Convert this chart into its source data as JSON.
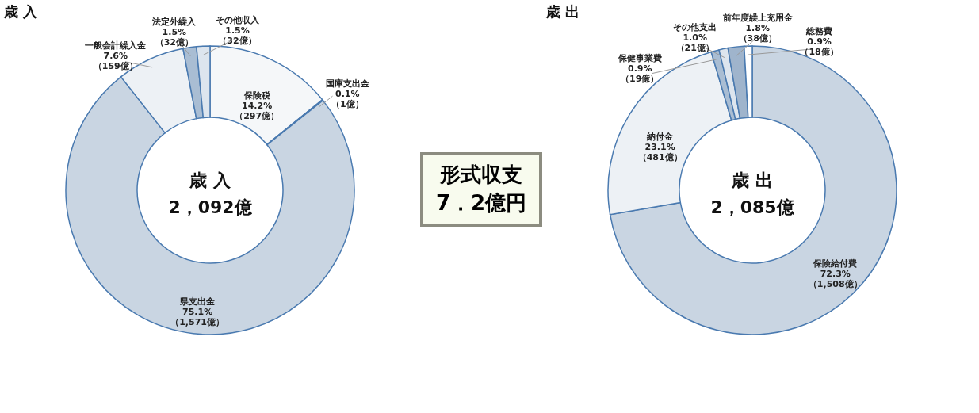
{
  "chart_data": [
    {
      "type": "donut",
      "title": "歳 入",
      "categories": [
        "保険税",
        "国庫支出金",
        "県支出金",
        "一般会計繰入金",
        "法定外繰入",
        "その他収入"
      ],
      "values": [
        14.2,
        0.1,
        75.1,
        7.6,
        1.5,
        1.5
      ],
      "value_labels": [
        "14.2%\n（297億）",
        "0.1%\n（1億）",
        "75.1%\n（1,571億）",
        "7.6%\n（159億）",
        "1.5%\n（32億）",
        "1.5%\n（32億）"
      ],
      "colors": [
        "#f5f7f9",
        "#ffffff",
        "#c9d5e2",
        "#edf1f5",
        "#a9bdd3",
        "#dde5ee"
      ],
      "annotations": [
        "歳 入",
        "2，092億"
      ],
      "legend": false
    },
    {
      "type": "other",
      "title": "形式収支",
      "annotations": [
        "7．2億円"
      ]
    },
    {
      "type": "donut",
      "title": "歳 出",
      "categories": [
        "保険給付費",
        "納付金",
        "保健事業費",
        "その他支出",
        "前年度繰上充用金",
        "総務費"
      ],
      "values": [
        72.3,
        23.1,
        0.9,
        1.0,
        1.8,
        0.9
      ],
      "value_labels": [
        "72.3%\n（1,508億）",
        "23.1%\n（481億）",
        "0.9%\n（19億）",
        "1.0%\n（21億）",
        "1.8%\n（38億）",
        "0.9%\n（18億）"
      ],
      "colors": [
        "#c9d5e2",
        "#edf1f5",
        "#a9bdd3",
        "#dde5ee",
        "#9fb4cc",
        "#ffffff"
      ],
      "annotations": [
        "歳 出",
        "2，085億"
      ],
      "legend": false
    }
  ]
}
